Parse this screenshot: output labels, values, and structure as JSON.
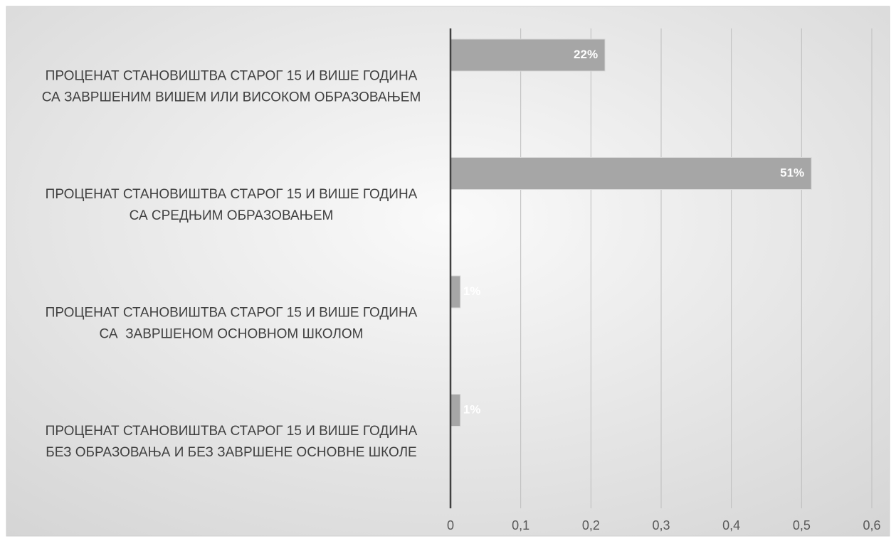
{
  "chart_data": {
    "type": "barh",
    "categories": [
      "ПРОЦЕНАТ СТАНОВИШТВА СТАРОГ 15 И ВИШЕ ГОДИНА\nСА ЗАВРШЕНИМ ВИШЕМ ИЛИ ВИСОКОМ ОБРАЗОВАЊЕМ",
      "ПРОЦЕНАТ СТАНОВИШТВА СТАРОГ 15 И ВИШЕ ГОДИНА\nСА СРЕДЊИМ ОБРАЗОВАЊЕМ",
      "ПРОЦЕНАТ СТАНОВИШТВА СТАРОГ 15 И ВИШЕ ГОДИНА\nСА  ЗАВРШЕНОМ ОСНОВНОМ ШКОЛОМ",
      "ПРОЦЕНАТ СТАНОВИШТВА СТАРОГ 15 И ВИШЕ ГОДИНА\nБЕЗ ОБРАЗОВАЊА И БЕЗ ЗАВРШЕНЕ ОСНОВНЕ ШКОЛЕ"
    ],
    "values": [
      0.22,
      0.514,
      0.014,
      0.014
    ],
    "value_labels": [
      "22%",
      "51%",
      "1%",
      "1%"
    ],
    "color": "#a6a6a6",
    "xlim": [
      0,
      0.6
    ],
    "xticks": [
      0,
      {
        "value": 0.1,
        "label": "0,1"
      },
      {
        "value": 0.2,
        "label": "0,2"
      },
      {
        "value": 0.3,
        "label": "0,3"
      },
      {
        "value": 0.4,
        "label": "0,4"
      },
      {
        "value": 0.5,
        "label": "0,5"
      },
      {
        "value": 0.6,
        "label": "0,6"
      }
    ],
    "grid": true
  }
}
